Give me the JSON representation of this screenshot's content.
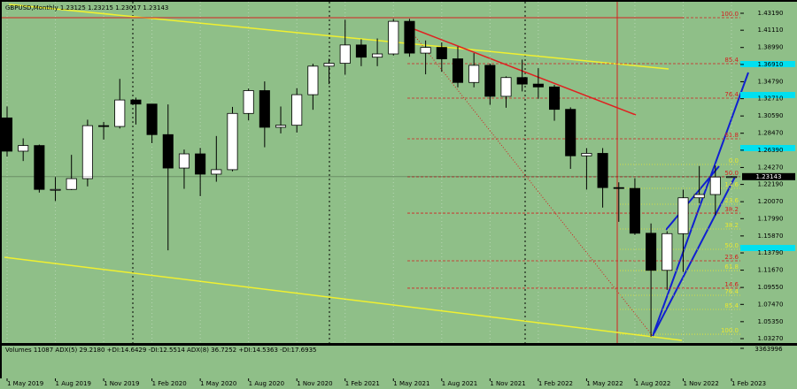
{
  "chart_data": {
    "type": "candlestick",
    "title": "GBPUSD,Monthly  1.23125  1.23215  1.23017  1.23143",
    "categories": [
      "1 May 2019",
      null,
      null,
      "1 Aug 2019",
      null,
      null,
      "1 Nov 2019",
      null,
      null,
      "1 Feb 2020",
      null,
      null,
      "1 May 2020",
      null,
      null,
      "1 Aug 2020",
      null,
      null,
      "1 Nov 2020",
      null,
      null,
      "1 Feb 2021",
      null,
      null,
      "1 May 2021",
      null,
      null,
      "1 Aug 2021",
      null,
      null,
      "1 Nov 2021",
      null,
      null,
      "1 Feb 2022",
      null,
      null,
      "1 May 2022",
      null,
      null,
      "1 Aug 2022",
      null,
      null,
      "1 Nov 2022",
      null,
      null,
      "1 Feb 2023"
    ],
    "open": [
      1.3035,
      1.2627,
      1.2696,
      1.2158,
      1.2158,
      1.229,
      1.294,
      1.293,
      1.3255,
      1.3205,
      1.283,
      1.242,
      1.2594,
      1.2345,
      1.24,
      1.309,
      1.337,
      1.292,
      1.2945,
      1.332,
      1.367,
      1.3705,
      1.393,
      1.378,
      1.382,
      1.422,
      1.383,
      1.39,
      1.376,
      1.347,
      1.368,
      1.33,
      1.353,
      1.345,
      1.3415,
      1.314,
      1.257,
      1.26,
      1.218,
      1.217,
      1.162,
      1.1165,
      1.1615,
      1.2055,
      1.2095,
      1.23125
    ],
    "high": [
      1.3176,
      1.2784,
      1.2708,
      1.2309,
      1.2582,
      1.3013,
      1.2985,
      1.3514,
      1.3284,
      1.32,
      1.32,
      1.2647,
      1.2667,
      1.2813,
      1.317,
      1.3395,
      1.3483,
      1.3175,
      1.34,
      1.37,
      1.376,
      1.424,
      1.4,
      1.401,
      1.425,
      1.425,
      1.3985,
      1.396,
      1.391,
      1.383,
      1.37,
      1.3545,
      1.375,
      1.3645,
      1.344,
      1.3165,
      1.2665,
      1.2665,
      1.2245,
      1.2295,
      1.174,
      1.1645,
      1.2155,
      1.2445,
      1.245,
      1.23215
    ],
    "low": [
      1.256,
      1.2506,
      1.2119,
      1.2015,
      1.215,
      1.2195,
      1.2769,
      1.2905,
      1.2954,
      1.2725,
      1.141,
      1.2165,
      1.2075,
      1.2252,
      1.238,
      1.3005,
      1.2675,
      1.2845,
      1.2855,
      1.3135,
      1.345,
      1.3565,
      1.367,
      1.367,
      1.38,
      1.3785,
      1.357,
      1.36,
      1.341,
      1.341,
      1.3195,
      1.316,
      1.336,
      1.327,
      1.3,
      1.241,
      1.2155,
      1.1935,
      1.176,
      1.16,
      1.035,
      1.0925,
      1.1145,
      1.199,
      1.184,
      1.23017
    ],
    "close": [
      1.2627,
      1.2696,
      1.2158,
      1.2158,
      1.229,
      1.294,
      1.293,
      1.3255,
      1.3205,
      1.283,
      1.242,
      1.2594,
      1.2345,
      1.24,
      1.309,
      1.337,
      1.292,
      1.2945,
      1.332,
      1.367,
      1.3705,
      1.393,
      1.378,
      1.382,
      1.422,
      1.383,
      1.39,
      1.376,
      1.347,
      1.368,
      1.33,
      1.353,
      1.345,
      1.3415,
      1.314,
      1.257,
      1.26,
      1.218,
      1.217,
      1.162,
      1.1165,
      1.1615,
      1.2055,
      1.2095,
      1.231,
      1.23143
    ],
    "up_color": "#ffffff",
    "down_color": "#000000",
    "background": "#8fbf88",
    "ylim": [
      1.0273,
      1.446
    ],
    "yticks": [
      {
        "value": 1.4319,
        "label": "1.43190"
      },
      {
        "value": 1.4111,
        "label": "1.41110"
      },
      {
        "value": 1.3899,
        "label": "1.38990"
      },
      {
        "value": 1.3691,
        "label": "1.36910"
      },
      {
        "value": 1.3479,
        "label": "1.34790"
      },
      {
        "value": 1.3271,
        "label": "1.32710"
      },
      {
        "value": 1.3059,
        "label": "1.30590"
      },
      {
        "value": 1.2847,
        "label": "1.28470"
      },
      {
        "value": 1.2639,
        "label": "1.26390"
      },
      {
        "value": 1.2427,
        "label": "1.24270"
      },
      {
        "value": 1.2219,
        "label": "1.22190"
      },
      {
        "value": 1.2007,
        "label": "1.20070"
      },
      {
        "value": 1.1799,
        "label": "1.17990"
      },
      {
        "value": 1.1587,
        "label": "1.15870"
      },
      {
        "value": 1.1379,
        "label": "1.13790"
      },
      {
        "value": 1.1167,
        "label": "1.11670"
      },
      {
        "value": 1.0955,
        "label": "1.09550"
      },
      {
        "value": 1.0747,
        "label": "1.07470"
      },
      {
        "value": 1.0535,
        "label": "1.05350"
      },
      {
        "value": 1.0327,
        "label": "1.03270"
      }
    ],
    "last_price": {
      "value": 1.23143,
      "label": "1.23143"
    },
    "fib_levels": [
      {
        "value": 1.4265,
        "label": "100.0",
        "color": "#d42020"
      },
      {
        "value": 1.3701,
        "label": "85.4",
        "color": "#d42020"
      },
      {
        "value": 1.3278,
        "label": "76.4",
        "color": "#d42020"
      },
      {
        "value": 1.2779,
        "label": "61.8",
        "color": "#d42020"
      },
      {
        "value": 1.2464,
        "label": "0.0",
        "color": "#e8e830"
      },
      {
        "value": 1.2312,
        "label": "50.0",
        "color": "#d42020"
      },
      {
        "value": 1.2171,
        "label": "14.6",
        "color": "#e8e830"
      },
      {
        "value": 1.1976,
        "label": "23.6",
        "color": "#e8e830"
      },
      {
        "value": 1.1867,
        "label": "38.2",
        "color": "#d42020"
      },
      {
        "value": 1.1672,
        "label": "38.2",
        "color": "#e8e830"
      },
      {
        "value": 1.1423,
        "label": "50.0",
        "color": "#e8e830"
      },
      {
        "value": 1.1282,
        "label": "23.6",
        "color": "#d42020"
      },
      {
        "value": 1.1162,
        "label": "61.8",
        "color": "#e8e830"
      },
      {
        "value": 1.0946,
        "label": "14.6",
        "color": "#d42020"
      },
      {
        "value": 1.0859,
        "label": "76.4",
        "color": "#e8e830"
      },
      {
        "value": 1.0685,
        "label": "85.4",
        "color": "#e8e830"
      },
      {
        "value": 1.0381,
        "label": "100.0",
        "color": "#e8e830"
      }
    ],
    "indicator_legend": "Volumes 11087  ADX(5) 29.2180 +DI:14.6429 -DI:12.5514  ADX(8) 36.7252 +DI:14.5363 -DI:17.6935",
    "indicator_ymax": 3363996
  }
}
